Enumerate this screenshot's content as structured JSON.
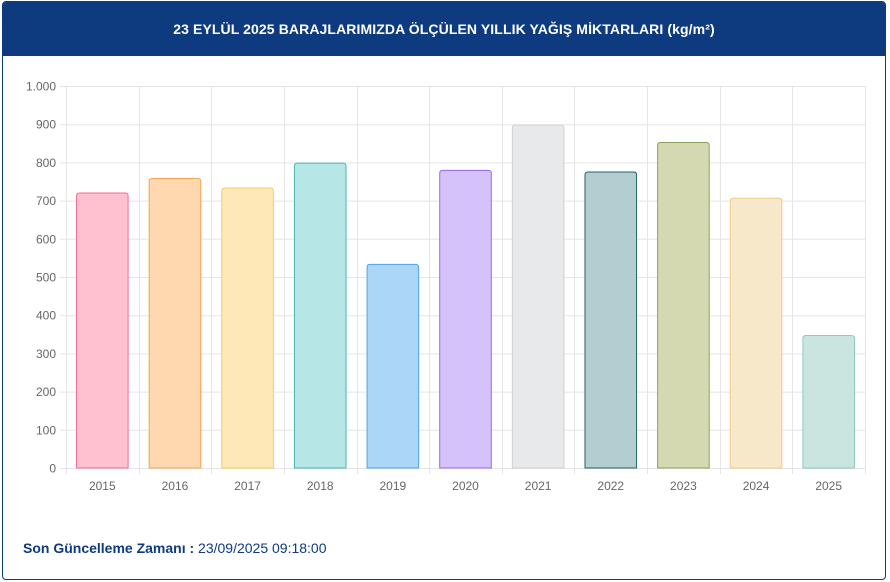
{
  "header": {
    "title": "23 EYLÜL 2025 BARAJLARIMIZDA ÖLÇÜLEN YILLIK YAĞIŞ MİKTARLARI (kg/m²)"
  },
  "footer": {
    "label": "Son Güncelleme Zamanı :",
    "value": "23/09/2025 09:18:00"
  },
  "colors": {
    "header_bg": "#0e3a80",
    "footer_text": "#0e3a80"
  },
  "chart_data": {
    "type": "bar",
    "title": "23 EYLÜL 2025 BARAJLARIMIZDA ÖLÇÜLEN YILLIK YAĞIŞ MİKTARLARI (kg/m²)",
    "xlabel": "",
    "ylabel": "",
    "categories": [
      "2015",
      "2016",
      "2017",
      "2018",
      "2019",
      "2020",
      "2021",
      "2022",
      "2023",
      "2024",
      "2025"
    ],
    "values": [
      720,
      758,
      733,
      798,
      533,
      779,
      898,
      775,
      852,
      706,
      347
    ],
    "ylim": [
      0,
      1000
    ],
    "yticks": [
      0,
      100,
      200,
      300,
      400,
      500,
      600,
      700,
      800,
      900,
      1000
    ],
    "ytick_labels": [
      "0",
      "100",
      "200",
      "300",
      "400",
      "500",
      "600",
      "700",
      "800",
      "900",
      "1.000"
    ],
    "grid": true,
    "legend": "none",
    "bar_fills": [
      "#ffc1d0",
      "#ffd8b0",
      "#ffe8b8",
      "#b6e6e6",
      "#acd6f7",
      "#d5c2fb",
      "#e8e9eb",
      "#b3cdd1",
      "#d4d9b2",
      "#f6e8c9",
      "#cae5df"
    ],
    "bar_strokes": [
      "#ef6f95",
      "#f5a453",
      "#f7cb66",
      "#43b8b4",
      "#4da4ea",
      "#9a66f0",
      "#cfd1d4",
      "#27616a",
      "#8da15a",
      "#ecce89",
      "#8ccab8"
    ]
  }
}
